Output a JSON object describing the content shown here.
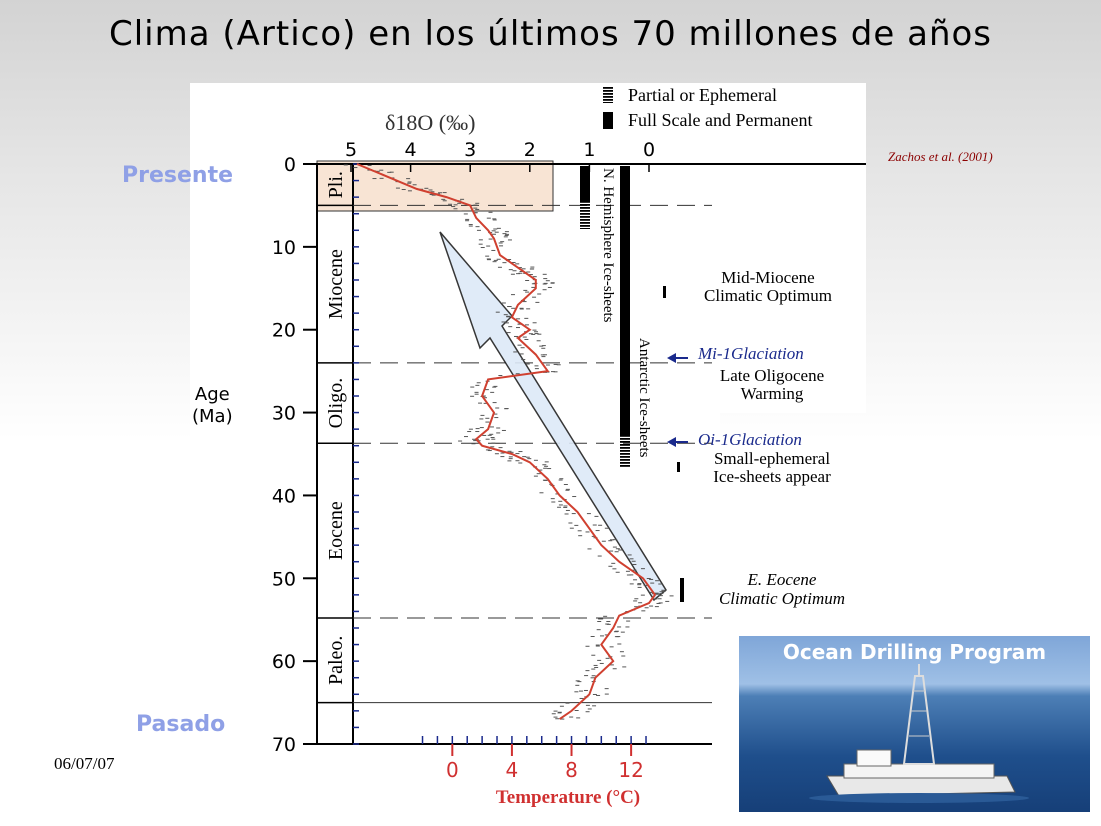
{
  "slide": {
    "title": "Clima (Artico) en los últimos 70 millones de años",
    "label_top": "Presente",
    "label_bottom": "Pasado",
    "date": "06/07/07",
    "citation": "Zachos et al. (2001)",
    "age_label_1": "Age",
    "age_label_2": "(Ma)",
    "photo_caption": "Ocean Drilling Program"
  },
  "colors": {
    "accent_label": "#8fa0e6",
    "curve": "#d04030",
    "temperature_axis": "#d03030",
    "arrow_fill": "#dde9f8",
    "highlight_box": "#f8e4d4",
    "event_text": "#1a2a8c"
  },
  "chart_data": {
    "type": "line",
    "ylabel": "Age (Ma)",
    "xlabel_top": "δ18O (‰)",
    "xlabel_bottom": "Temperature (°C)",
    "y_range": [
      0,
      70
    ],
    "y_ticks": [
      "0",
      "10",
      "20",
      "30",
      "40",
      "50",
      "60",
      "70"
    ],
    "d18O_range": [
      5,
      -0.5
    ],
    "d18O_ticks": [
      "5",
      "4",
      "3",
      "2",
      "1",
      "0"
    ],
    "temperature_ticks": [
      "0",
      "4",
      "8",
      "12"
    ],
    "legend": [
      "Partial or Ephemeral",
      "Full Scale and Permanent"
    ],
    "epochs": [
      {
        "name": "Pli.",
        "from": 0,
        "to": 5
      },
      {
        "name": "Miocene",
        "from": 5,
        "to": 24
      },
      {
        "name": "Oligo.",
        "from": 24,
        "to": 33.7
      },
      {
        "name": "Eocene",
        "from": 33.7,
        "to": 54.8
      },
      {
        "name": "Paleo.",
        "from": 54.8,
        "to": 65
      }
    ],
    "ice_sheets": [
      {
        "name": "N. Hemisphere Ice-sheets",
        "from": 0,
        "to": 7
      },
      {
        "name": "Antarctic Ice-sheets",
        "from": 0,
        "to": 36
      }
    ],
    "series": [
      {
        "name": "δ18O",
        "x": [
          4.9,
          4.4,
          3.9,
          3.4,
          3.0,
          2.9,
          2.7,
          2.6,
          2.5,
          2.3,
          2.1,
          1.9,
          1.9,
          2.2,
          2.3,
          2.0,
          2.2,
          1.9,
          1.7,
          2.7,
          2.8,
          2.6,
          2.7,
          2.9,
          2.8,
          2.3,
          2.0,
          1.7,
          1.5,
          1.2,
          1.0,
          0.8,
          0.5,
          0.1,
          0.0,
          -0.1,
          0.0,
          0.5,
          0.6,
          0.8,
          0.6,
          0.9,
          1.0,
          1.3,
          1.5
        ],
        "y": [
          0,
          1.5,
          3,
          4,
          5,
          6.5,
          8,
          9,
          11,
          12,
          13,
          14,
          15,
          17,
          18.5,
          20,
          21,
          23,
          25,
          26,
          28,
          30,
          32,
          33.2,
          34,
          35,
          36,
          38,
          40,
          42,
          44,
          46,
          48,
          50,
          51,
          52,
          53,
          54.5,
          56,
          58,
          60,
          62,
          64,
          66,
          67
        ]
      }
    ],
    "events": [
      {
        "label": "Mid-Miocene Climatic Optimum",
        "age": 15
      },
      {
        "label": "Mi-1 Glaciation",
        "age": 23
      },
      {
        "label": "Late Oligocene Warming",
        "age": 26
      },
      {
        "label": "Oi-1 Glaciation",
        "age": 33.5
      },
      {
        "label": "Small-ephemeral Ice-sheets appear",
        "age": 36
      },
      {
        "label": "E. Eocene Climatic Optimum",
        "age": 51.5
      }
    ],
    "event_text": {
      "mm1": "Mid-Miocene",
      "mm2": "Climatic Optimum",
      "mi1": "Mi-1Glaciation",
      "lo1": "Late Oligocene",
      "lo2": "Warming",
      "oi1": "Oi-1Glaciation",
      "se1": "Small-ephemeral",
      "se2": "Ice-sheets appear",
      "ee1": "E. Eocene",
      "ee2": "Climatic Optimum"
    }
  }
}
